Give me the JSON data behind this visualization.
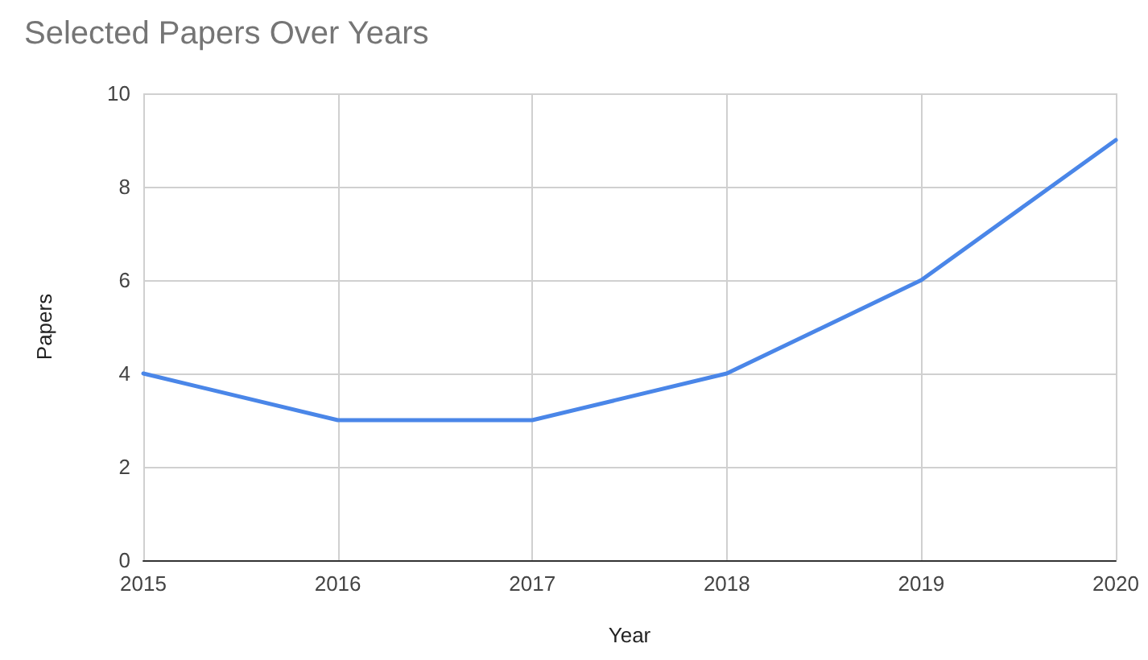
{
  "chart_data": {
    "type": "line",
    "title": "Selected Papers Over Years",
    "xlabel": "Year",
    "ylabel": "Papers",
    "x": [
      2015,
      2016,
      2017,
      2018,
      2019,
      2020
    ],
    "series": [
      {
        "color": "#4a86e8",
        "values": [
          4,
          3,
          3,
          4,
          6,
          9
        ]
      }
    ],
    "xlim": [
      2015,
      2020
    ],
    "xticks": [
      2015,
      2016,
      2017,
      2018,
      2019,
      2020
    ],
    "ylim": [
      0,
      10
    ],
    "yticks": [
      0,
      2,
      4,
      6,
      8,
      10
    ],
    "grid": true,
    "marker": "none",
    "line_style": "solid"
  }
}
